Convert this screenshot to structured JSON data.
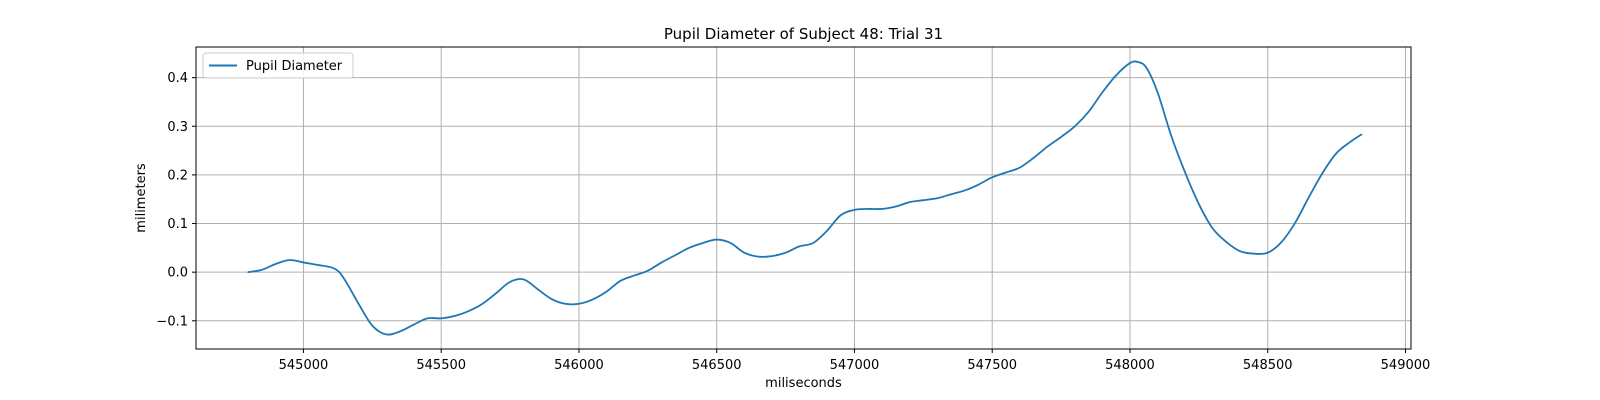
{
  "chart_data": {
    "type": "line",
    "title": "Pupil Diameter of Subject 48: Trial 31",
    "xlabel": "miliseconds",
    "ylabel": "milimeters",
    "xlim": [
      544610,
      549020
    ],
    "ylim": [
      -0.158,
      0.463
    ],
    "xticks": [
      545000,
      545500,
      546000,
      546500,
      547000,
      547500,
      548000,
      548500,
      549000
    ],
    "yticks": [
      -0.1,
      0.0,
      0.1,
      0.2,
      0.3,
      0.4
    ],
    "grid": true,
    "legend": {
      "position": "top-left"
    },
    "series": [
      {
        "name": "Pupil Diameter",
        "color": "#1f77b4",
        "x": [
          544800,
          544850,
          544900,
          544950,
          545000,
          545050,
          545100,
          545130,
          545160,
          545200,
          545250,
          545300,
          545350,
          545400,
          545450,
          545500,
          545550,
          545600,
          545650,
          545700,
          545750,
          545800,
          545850,
          545900,
          545950,
          546000,
          546050,
          546100,
          546150,
          546200,
          546250,
          546300,
          546350,
          546400,
          546450,
          546500,
          546550,
          546600,
          546650,
          546700,
          546750,
          546800,
          546850,
          546900,
          546950,
          547000,
          547050,
          547100,
          547150,
          547200,
          547250,
          547300,
          547350,
          547400,
          547450,
          547500,
          547550,
          547600,
          547650,
          547700,
          547750,
          547800,
          547850,
          547900,
          547950,
          548000,
          548030,
          548060,
          548100,
          548150,
          548200,
          548250,
          548300,
          548350,
          548400,
          548450,
          548500,
          548550,
          548600,
          548650,
          548700,
          548750,
          548800,
          548840
        ],
        "y": [
          0.0,
          0.005,
          0.017,
          0.025,
          0.02,
          0.015,
          0.01,
          0.0,
          -0.025,
          -0.065,
          -0.11,
          -0.128,
          -0.122,
          -0.108,
          -0.095,
          -0.095,
          -0.09,
          -0.08,
          -0.065,
          -0.043,
          -0.02,
          -0.015,
          -0.035,
          -0.055,
          -0.065,
          -0.065,
          -0.056,
          -0.04,
          -0.018,
          -0.007,
          0.003,
          0.02,
          0.035,
          0.05,
          0.06,
          0.067,
          0.06,
          0.04,
          0.032,
          0.033,
          0.04,
          0.053,
          0.06,
          0.085,
          0.117,
          0.128,
          0.13,
          0.13,
          0.135,
          0.144,
          0.148,
          0.152,
          0.16,
          0.168,
          0.18,
          0.195,
          0.205,
          0.215,
          0.235,
          0.258,
          0.278,
          0.3,
          0.33,
          0.37,
          0.405,
          0.43,
          0.432,
          0.42,
          0.37,
          0.28,
          0.205,
          0.14,
          0.09,
          0.062,
          0.043,
          0.038,
          0.04,
          0.062,
          0.102,
          0.155,
          0.205,
          0.245,
          0.268,
          0.283
        ]
      }
    ]
  }
}
